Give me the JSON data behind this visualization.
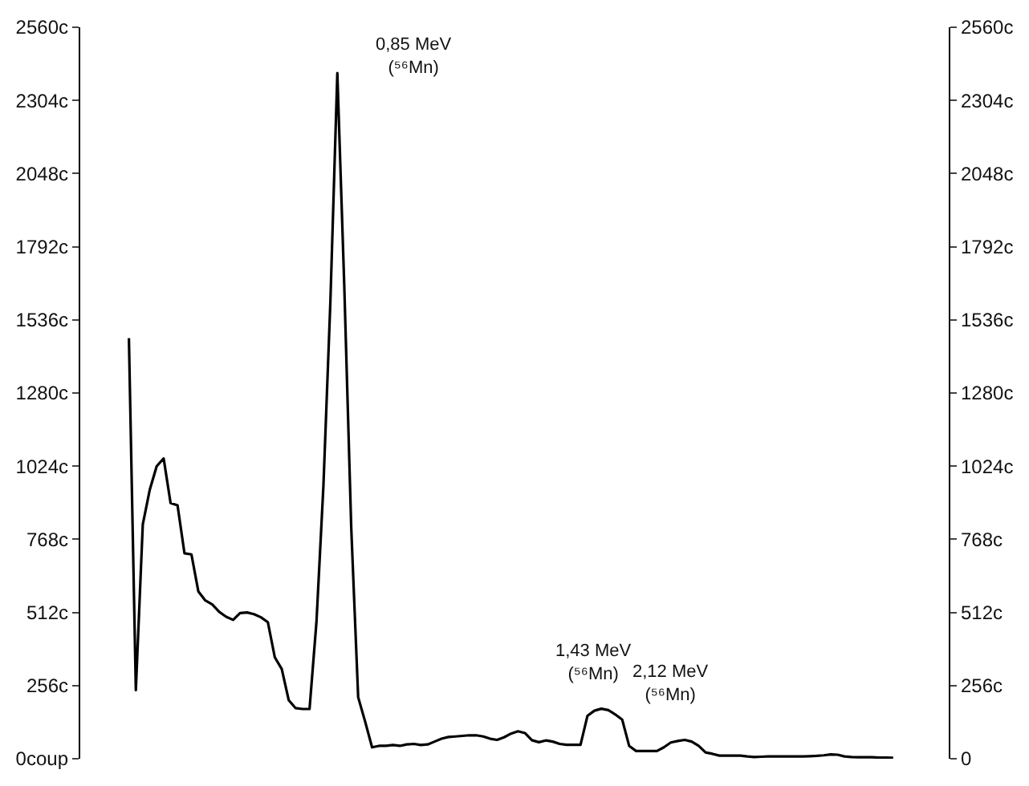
{
  "chart_data": {
    "type": "line",
    "categories": [
      null,
      null,
      null,
      null,
      null,
      null,
      null,
      null,
      null,
      null,
      null,
      null,
      null,
      null,
      null,
      null,
      null,
      null,
      null,
      null,
      null,
      null,
      null,
      null,
      null,
      null,
      null,
      null,
      null,
      null,
      null,
      null,
      null,
      null,
      null,
      null,
      null,
      null,
      null,
      null,
      null,
      null,
      null,
      null,
      null,
      null,
      null,
      null,
      null,
      null,
      null,
      null,
      null,
      null,
      null,
      null,
      null,
      null,
      null,
      null,
      null,
      null,
      null,
      null,
      null,
      null,
      null,
      null,
      null,
      null,
      null,
      null,
      null,
      null,
      null,
      null,
      null,
      null,
      null,
      null,
      null,
      null,
      null,
      null,
      null,
      null,
      null,
      null,
      null,
      null,
      null,
      null,
      null,
      null,
      null,
      null,
      null,
      null,
      null,
      null,
      null,
      null,
      null,
      null,
      null,
      null,
      null,
      null,
      null,
      null,
      null
    ],
    "series": [
      {
        "color": "#000000",
        "values": [
          1472,
          240,
          820,
          941,
          1024,
          1051,
          895,
          887,
          719,
          715,
          585,
          554,
          540,
          514,
          497,
          486,
          510,
          512,
          506,
          495,
          478,
          355,
          314,
          205,
          177,
          174,
          174,
          480,
          956,
          1600,
          2400,
          1655,
          810,
          215,
          130,
          40,
          45,
          45,
          48,
          45,
          50,
          52,
          48,
          50,
          60,
          70,
          76,
          78,
          80,
          82,
          82,
          78,
          70,
          66,
          75,
          88,
          96,
          90,
          65,
          58,
          64,
          60,
          52,
          49,
          49,
          49,
          150,
          168,
          175,
          170,
          155,
          137,
          45,
          27,
          27,
          27,
          27,
          40,
          57,
          62,
          66,
          60,
          45,
          22,
          17,
          11,
          11,
          11,
          11,
          8,
          6,
          7,
          8,
          8,
          8,
          8,
          8,
          8,
          9,
          10,
          12,
          15,
          14,
          8,
          6,
          5,
          5,
          5,
          4,
          4,
          3
        ]
      }
    ],
    "ylim": [
      0,
      2560
    ],
    "yticks": [
      {
        "value": 0,
        "label": "0coup"
      },
      {
        "value": 256,
        "label": "256c"
      },
      {
        "value": 512,
        "label": "512c"
      },
      {
        "value": 768,
        "label": "768c"
      },
      {
        "value": 1024,
        "label": "1024c"
      },
      {
        "value": 1280,
        "label": "1280c"
      },
      {
        "value": 1536,
        "label": "1536c"
      },
      {
        "value": 1792,
        "label": "1792c"
      },
      {
        "value": 2048,
        "label": "2048c"
      },
      {
        "value": 2304,
        "label": "2304c"
      },
      {
        "value": 2560,
        "label": "2560c"
      }
    ],
    "y2lim": [
      0,
      2560
    ],
    "y2ticks": [
      {
        "value": 0,
        "label": "0"
      },
      {
        "value": 256,
        "label": "256c"
      },
      {
        "value": 512,
        "label": "512c"
      },
      {
        "value": 768,
        "label": "768c"
      },
      {
        "value": 1024,
        "label": "1024c"
      },
      {
        "value": 1280,
        "label": "1280c"
      },
      {
        "value": 1536,
        "label": "1536c"
      },
      {
        "value": 1792,
        "label": "1792c"
      },
      {
        "value": 2048,
        "label": "2048c"
      },
      {
        "value": 2304,
        "label": "2304c"
      },
      {
        "value": 2560,
        "label": "2560c"
      }
    ],
    "tick_labels": "y",
    "annotations": [
      "0,85 MeV\n(⁵⁶Mn)",
      "1,43 MeV\n(⁵⁶Mn)",
      "2,12 MeV\n(⁵⁶Mn)"
    ],
    "marker": "none",
    "line_style": "solid"
  }
}
